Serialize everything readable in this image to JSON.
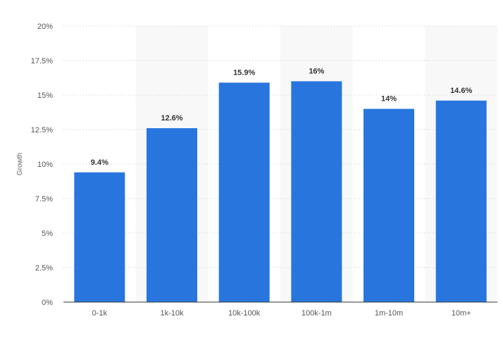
{
  "chart_data": {
    "type": "bar",
    "categories": [
      "0-1k",
      "1k-10k",
      "10k-100k",
      "100k-1m",
      "1m-10m",
      "10m+"
    ],
    "values": [
      9.4,
      12.6,
      15.9,
      16,
      14,
      14.6
    ],
    "data_labels": [
      "9.4%",
      "12.6%",
      "15.9%",
      "16%",
      "14%",
      "14.6%"
    ],
    "title": "",
    "xlabel": "",
    "ylabel": "Growth",
    "ylim": [
      0,
      20
    ],
    "yticks": [
      0,
      2.5,
      5,
      7.5,
      10,
      12.5,
      15,
      17.5,
      20
    ],
    "ytick_labels": [
      "0%",
      "2.5%",
      "5%",
      "7.5%",
      "10%",
      "12.5%",
      "15%",
      "17.5%",
      "20%"
    ],
    "grid": true,
    "grid_style": "dotted",
    "alternating_column_shading": true,
    "bar_color": "#2876dd",
    "shade_color": "#f8f8f8"
  }
}
